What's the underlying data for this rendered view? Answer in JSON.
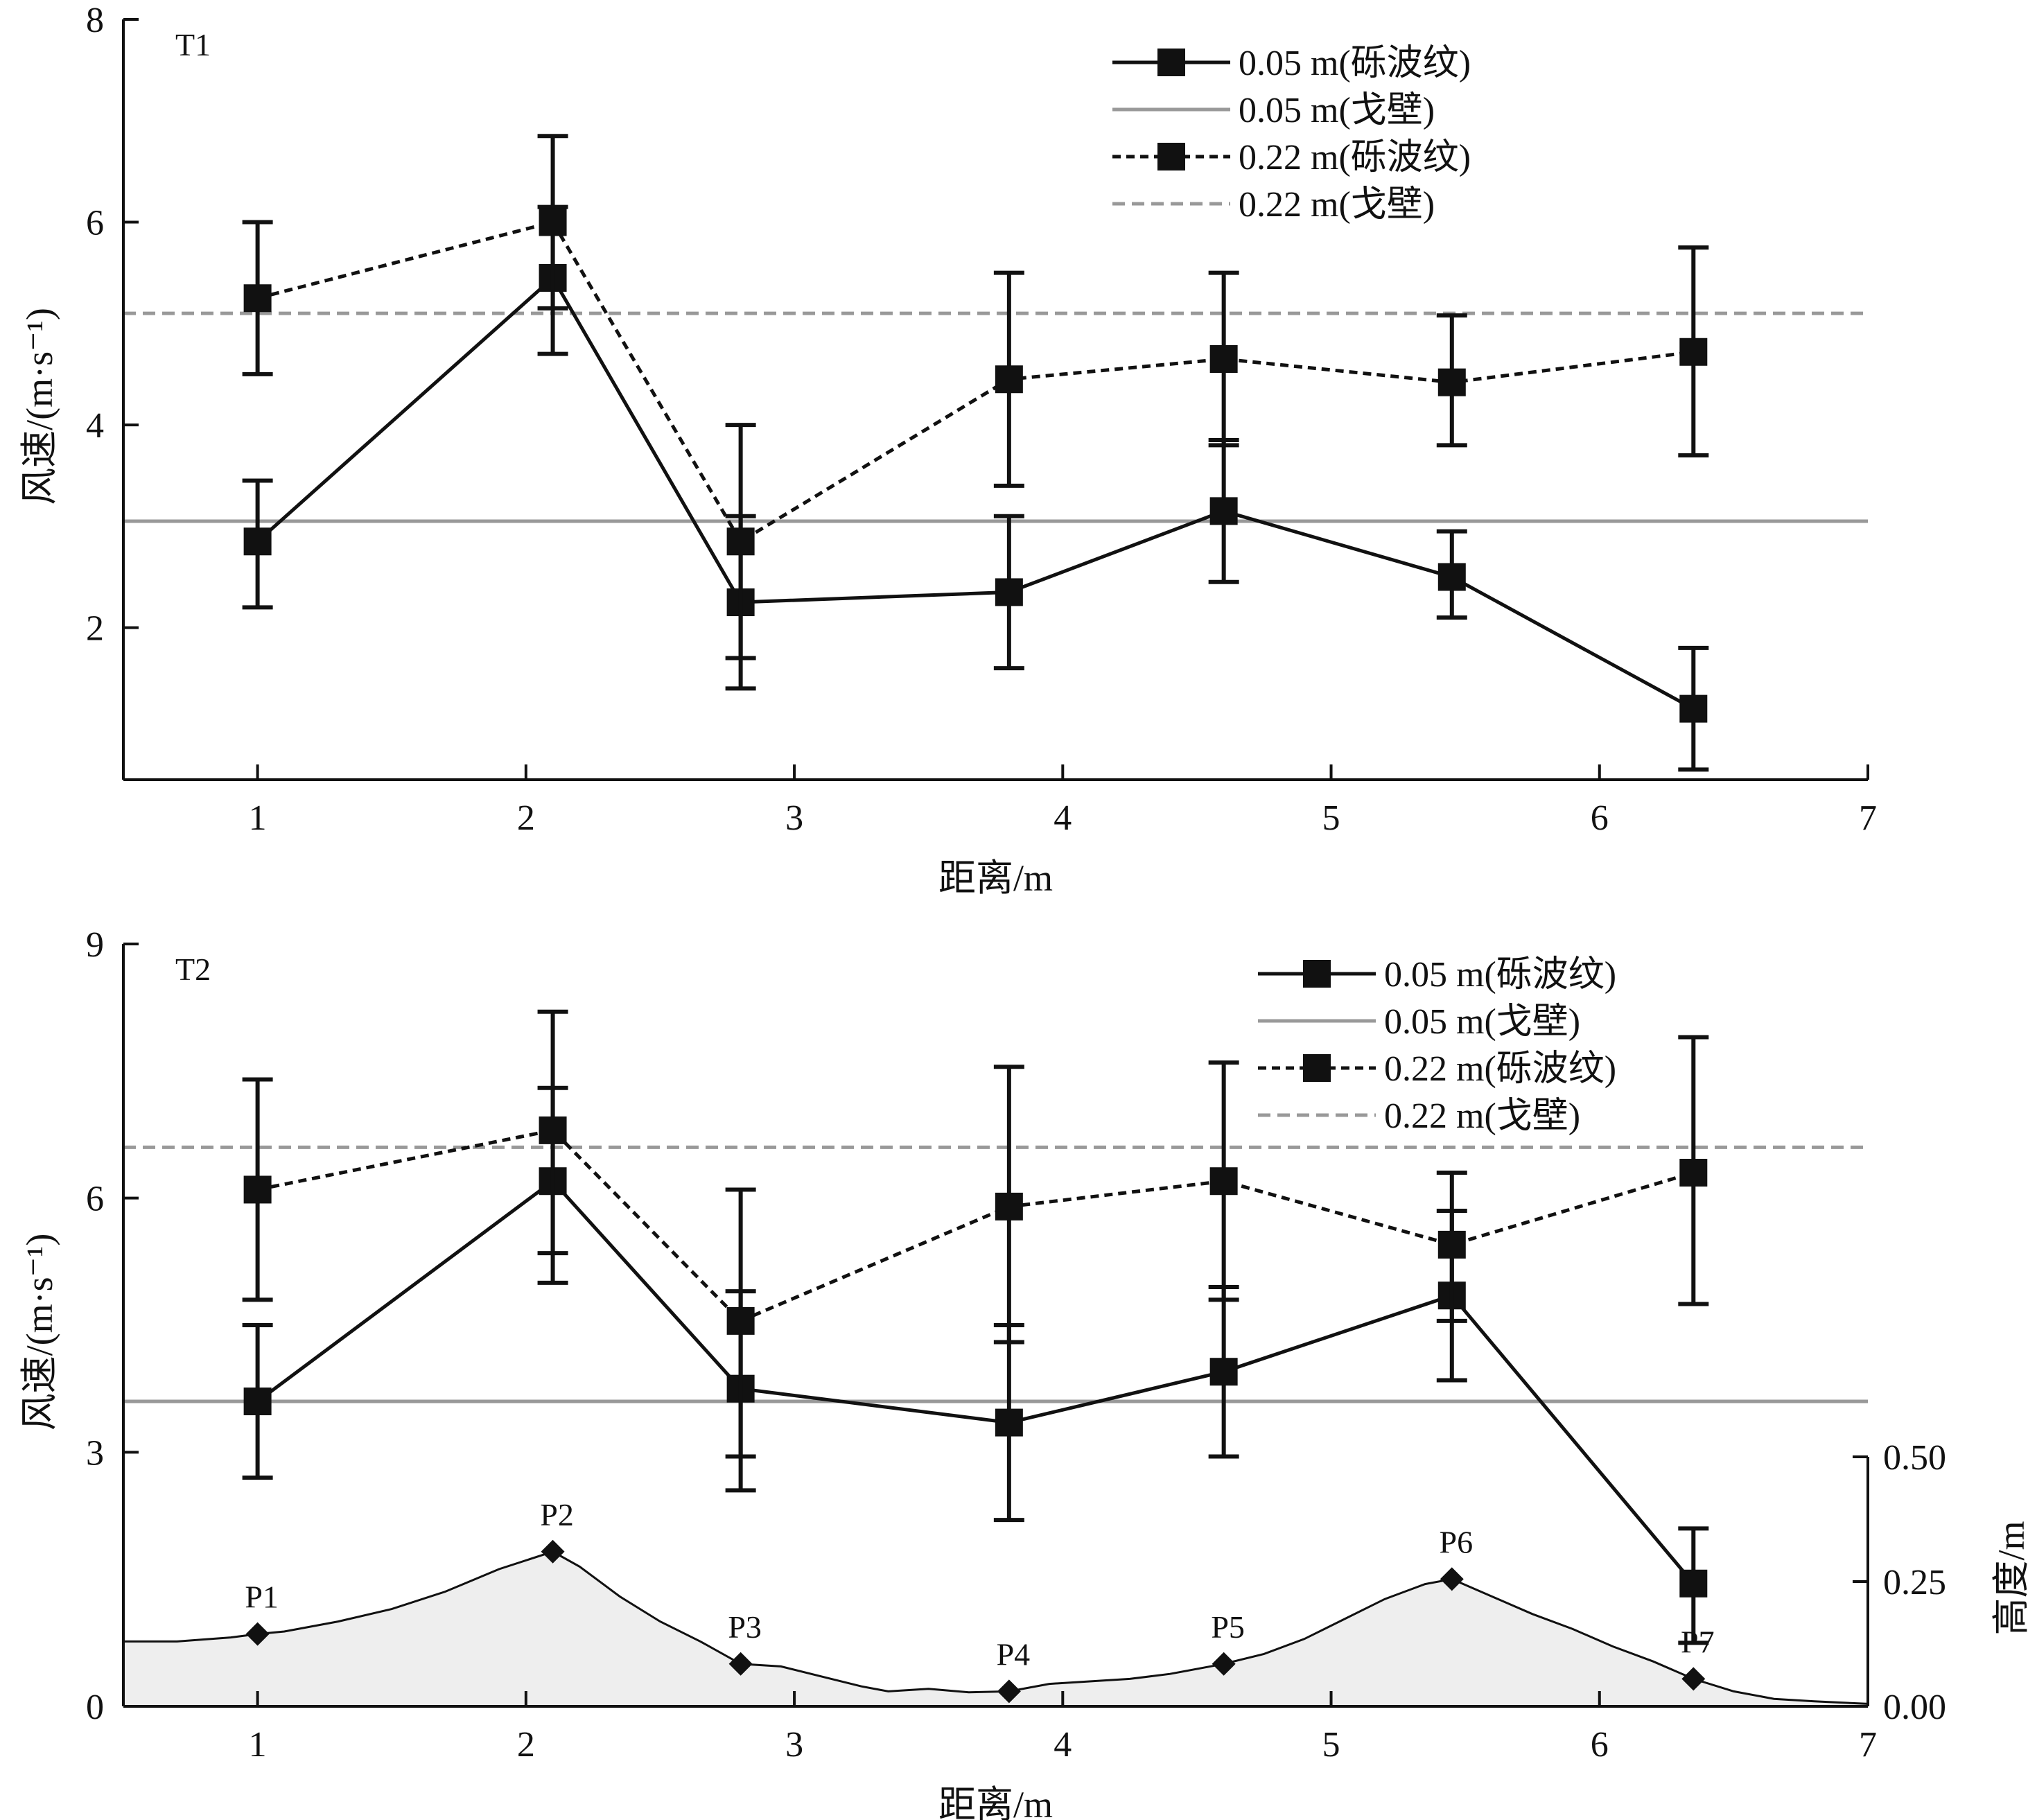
{
  "chart_data": [
    {
      "type": "line",
      "panel_label": "T1",
      "xlabel": "距离/m",
      "ylabel": "风速/(m·s⁻¹)",
      "xlim": [
        0.5,
        7
      ],
      "ylim": [
        0.5,
        8
      ],
      "xticks": [
        1,
        2,
        3,
        4,
        5,
        6,
        7
      ],
      "yticks": [
        2,
        4,
        6,
        8
      ],
      "x": [
        1.0,
        2.1,
        2.8,
        3.8,
        4.6,
        5.45,
        6.35
      ],
      "grid": false,
      "legend_position": "top-right",
      "series": [
        {
          "name": "0.05 m(砾波纹)",
          "style": "solid-marker",
          "color": "#111111",
          "values": [
            2.85,
            5.45,
            2.25,
            2.35,
            3.15,
            2.5,
            1.2
          ],
          "err_low": [
            2.2,
            4.7,
            1.4,
            1.6,
            2.45,
            2.1,
            0.6
          ],
          "err_high": [
            3.45,
            6.15,
            3.1,
            3.1,
            3.85,
            2.95,
            1.8
          ]
        },
        {
          "name": "0.05 m(戈壁)",
          "style": "hline-solid",
          "color": "#999999",
          "value": 3.05
        },
        {
          "name": "0.22 m(砾波纹)",
          "style": "dotted-marker",
          "color": "#111111",
          "values": [
            5.25,
            6.0,
            2.85,
            4.45,
            4.65,
            4.42,
            4.72
          ],
          "err_low": [
            4.5,
            5.15,
            1.7,
            3.4,
            3.8,
            3.8,
            3.7
          ],
          "err_high": [
            6.0,
            6.85,
            4.0,
            5.5,
            5.5,
            5.08,
            5.75
          ]
        },
        {
          "name": "0.22 m(戈壁)",
          "style": "hline-dashed",
          "color": "#999999",
          "value": 5.1
        }
      ]
    },
    {
      "type": "line",
      "panel_label": "T2",
      "xlabel": "距离/m",
      "ylabel": "风速/(m·s⁻¹)",
      "y2label": "高度/m",
      "xlim": [
        0.5,
        7
      ],
      "ylim": [
        0,
        9
      ],
      "y2lim": [
        0,
        0.5
      ],
      "xticks": [
        1,
        2,
        3,
        4,
        5,
        6,
        7
      ],
      "yticks": [
        0,
        3,
        6,
        9
      ],
      "y2ticks": [
        "0.00",
        "0.25",
        "0.50"
      ],
      "x": [
        1.0,
        2.1,
        2.8,
        3.8,
        4.6,
        5.45,
        6.35
      ],
      "grid": false,
      "legend_position": "top-right",
      "series": [
        {
          "name": "0.05 m(砾波纹)",
          "style": "solid-marker",
          "color": "#111111",
          "values": [
            3.6,
            6.2,
            3.75,
            3.35,
            3.95,
            4.85,
            1.45
          ],
          "err_low": [
            2.7,
            5.0,
            2.55,
            2.2,
            2.95,
            3.85,
            0.75
          ],
          "err_high": [
            4.5,
            7.3,
            4.9,
            4.5,
            4.95,
            5.85,
            2.1
          ]
        },
        {
          "name": "0.05 m(戈壁)",
          "style": "hline-solid",
          "color": "#999999",
          "value": 3.6
        },
        {
          "name": "0.22 m(砾波纹)",
          "style": "dotted-marker",
          "color": "#111111",
          "values": [
            6.1,
            6.8,
            4.55,
            5.9,
            6.2,
            5.45,
            6.3
          ],
          "err_low": [
            4.8,
            5.35,
            2.95,
            4.3,
            4.8,
            4.55,
            4.75
          ],
          "err_high": [
            7.4,
            8.2,
            6.1,
            7.55,
            7.6,
            6.3,
            7.9
          ]
        },
        {
          "name": "0.22 m(戈壁)",
          "style": "hline-dashed",
          "color": "#999999",
          "value": 6.6
        }
      ],
      "terrain": {
        "fill_color": "#eeeeee",
        "profile_x": [
          0.5,
          0.7,
          0.9,
          1.0,
          1.1,
          1.3,
          1.5,
          1.7,
          1.9,
          2.1,
          2.2,
          2.35,
          2.5,
          2.65,
          2.8,
          2.95,
          3.1,
          3.25,
          3.35,
          3.5,
          3.65,
          3.8,
          3.95,
          4.1,
          4.25,
          4.4,
          4.6,
          4.75,
          4.9,
          5.05,
          5.2,
          5.35,
          5.45,
          5.6,
          5.75,
          5.9,
          6.05,
          6.2,
          6.35,
          6.5,
          6.65,
          6.8,
          7.0
        ],
        "profile_h": [
          0.13,
          0.13,
          0.138,
          0.145,
          0.15,
          0.17,
          0.195,
          0.23,
          0.275,
          0.31,
          0.28,
          0.22,
          0.17,
          0.13,
          0.085,
          0.08,
          0.06,
          0.04,
          0.03,
          0.035,
          0.028,
          0.03,
          0.045,
          0.05,
          0.055,
          0.065,
          0.085,
          0.105,
          0.135,
          0.175,
          0.215,
          0.245,
          0.255,
          0.22,
          0.185,
          0.155,
          0.12,
          0.09,
          0.055,
          0.03,
          0.015,
          0.01,
          0.005
        ],
        "points": [
          {
            "label": "P1",
            "x": 1.0,
            "h": 0.145
          },
          {
            "label": "P2",
            "x": 2.1,
            "h": 0.31
          },
          {
            "label": "P3",
            "x": 2.8,
            "h": 0.085
          },
          {
            "label": "P4",
            "x": 3.8,
            "h": 0.03
          },
          {
            "label": "P5",
            "x": 4.6,
            "h": 0.085
          },
          {
            "label": "P6",
            "x": 5.45,
            "h": 0.255
          },
          {
            "label": "P7",
            "x": 6.35,
            "h": 0.055
          }
        ]
      }
    }
  ]
}
